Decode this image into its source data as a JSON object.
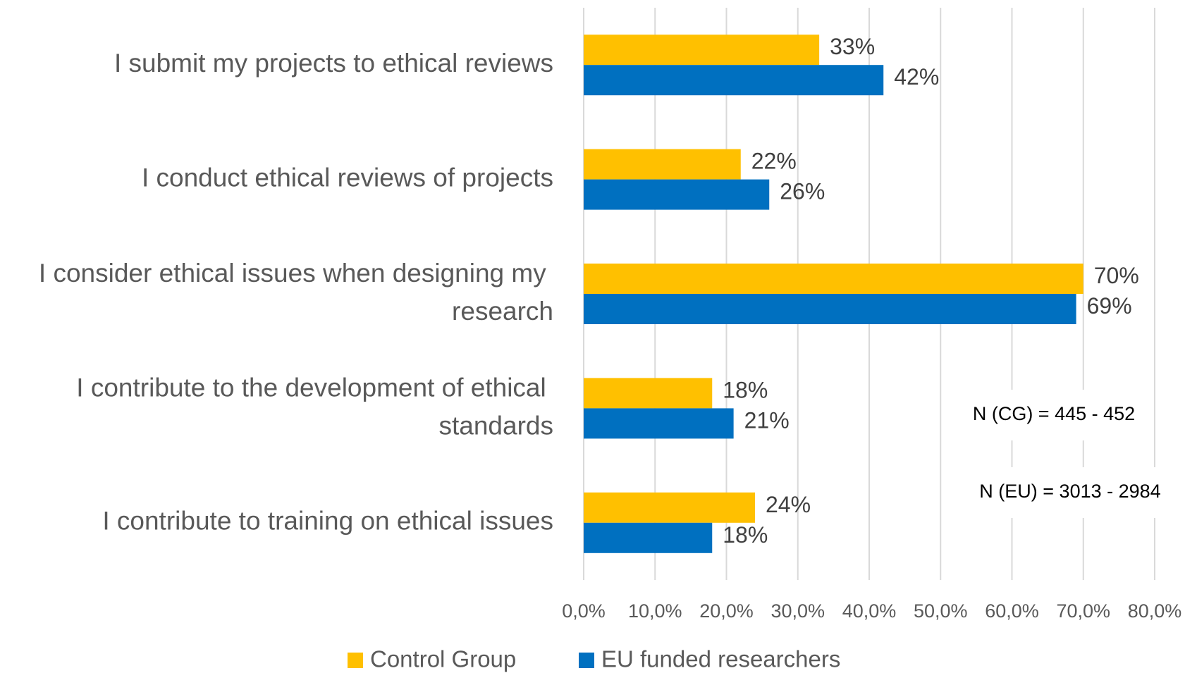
{
  "chart_data": {
    "type": "barh",
    "categories": [
      "I submit my projects to ethical reviews",
      "I conduct ethical reviews of projects",
      "I consider ethical issues when designing my research",
      "I contribute to the development of ethical standards",
      "I contribute to training on ethical issues"
    ],
    "series": [
      {
        "name": "Control Group",
        "color": "#FFC000",
        "values": [
          33,
          22,
          70,
          18,
          24
        ],
        "value_labels": [
          "33%",
          "22%",
          "70%",
          "18%",
          "24%"
        ]
      },
      {
        "name": "EU funded researchers",
        "color": "#0070C0",
        "values": [
          42,
          26,
          69,
          21,
          18
        ],
        "value_labels": [
          "42%",
          "26%",
          "69%",
          "21%",
          "18%"
        ]
      }
    ],
    "xlim": [
      0,
      80
    ],
    "xticks": [
      {
        "value": 0,
        "label": "0,0%"
      },
      {
        "value": 10,
        "label": "10,0%"
      },
      {
        "value": 20,
        "label": "20,0%"
      },
      {
        "value": 30,
        "label": "30,0%"
      },
      {
        "value": 40,
        "label": "40,0%"
      },
      {
        "value": 50,
        "label": "50,0%"
      },
      {
        "value": 60,
        "label": "60,0%"
      },
      {
        "value": 70,
        "label": "70,0%"
      },
      {
        "value": 80,
        "label": "80,0%"
      }
    ],
    "grid": true,
    "legend": "bottom",
    "annotations": [
      "N (CG) = 445 - 452",
      "N (EU) = 3013 - 2984"
    ]
  }
}
